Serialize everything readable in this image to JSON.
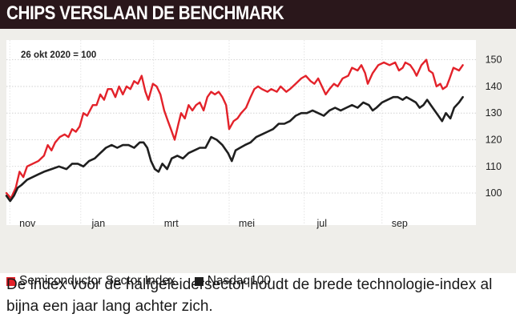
{
  "header": {
    "title": "CHIPS VERSLAAN DE BENCHMARK"
  },
  "colors": {
    "header_bg": "#2a171b",
    "panel_bg": "#efeeea",
    "semiconductor": "#e3222a",
    "nasdaq": "#1f1f1f"
  },
  "chart_data": {
    "type": "line",
    "annotation": "26 okt 2020 = 100",
    "ylim": [
      94,
      155
    ],
    "y_ticks": [
      100,
      110,
      120,
      130,
      140,
      150
    ],
    "y_axis_side": "right",
    "grid": "horizontal",
    "x_ticks": [
      {
        "label": "nov",
        "t": 0.09
      },
      {
        "label": "jan",
        "t": 1.98
      },
      {
        "label": "mrt",
        "t": 3.92
      },
      {
        "label": "mei",
        "t": 5.93
      },
      {
        "label": "jul",
        "t": 7.93
      },
      {
        "label": "sep",
        "t": 10.0
      }
    ],
    "legend_position": "bottom",
    "series": [
      {
        "name": "Semiconductor Sector Index",
        "color": "#e3222a",
        "points": [
          [
            0.0,
            100
          ],
          [
            0.12,
            98
          ],
          [
            0.25,
            102
          ],
          [
            0.35,
            108
          ],
          [
            0.45,
            106
          ],
          [
            0.55,
            110
          ],
          [
            0.7,
            111
          ],
          [
            0.85,
            112
          ],
          [
            1.0,
            114
          ],
          [
            1.1,
            118
          ],
          [
            1.2,
            116
          ],
          [
            1.3,
            119
          ],
          [
            1.42,
            121
          ],
          [
            1.55,
            122
          ],
          [
            1.65,
            121
          ],
          [
            1.75,
            124
          ],
          [
            1.85,
            123
          ],
          [
            1.95,
            125
          ],
          [
            2.05,
            130
          ],
          [
            2.15,
            129
          ],
          [
            2.3,
            133
          ],
          [
            2.4,
            133
          ],
          [
            2.5,
            137
          ],
          [
            2.6,
            135
          ],
          [
            2.7,
            139
          ],
          [
            2.8,
            139
          ],
          [
            2.9,
            136
          ],
          [
            3.0,
            140
          ],
          [
            3.1,
            137
          ],
          [
            3.2,
            140
          ],
          [
            3.3,
            139
          ],
          [
            3.4,
            142
          ],
          [
            3.5,
            141
          ],
          [
            3.6,
            144
          ],
          [
            3.7,
            138
          ],
          [
            3.78,
            135
          ],
          [
            3.9,
            141
          ],
          [
            4.0,
            140
          ],
          [
            4.1,
            137
          ],
          [
            4.2,
            131
          ],
          [
            4.3,
            127
          ],
          [
            4.38,
            124
          ],
          [
            4.48,
            120
          ],
          [
            4.58,
            126
          ],
          [
            4.65,
            130
          ],
          [
            4.75,
            128
          ],
          [
            4.85,
            133
          ],
          [
            4.95,
            131
          ],
          [
            5.05,
            133
          ],
          [
            5.15,
            134
          ],
          [
            5.25,
            131
          ],
          [
            5.35,
            136
          ],
          [
            5.45,
            138
          ],
          [
            5.55,
            137
          ],
          [
            5.65,
            138
          ],
          [
            5.75,
            136
          ],
          [
            5.85,
            133
          ],
          [
            5.93,
            124
          ],
          [
            6.05,
            127
          ],
          [
            6.15,
            128
          ],
          [
            6.25,
            130
          ],
          [
            6.38,
            132
          ],
          [
            6.5,
            136
          ],
          [
            6.6,
            139
          ],
          [
            6.7,
            140
          ],
          [
            6.8,
            139
          ],
          [
            6.95,
            138
          ],
          [
            7.05,
            139
          ],
          [
            7.2,
            138
          ],
          [
            7.3,
            140
          ],
          [
            7.45,
            138
          ],
          [
            7.55,
            139
          ],
          [
            7.7,
            141
          ],
          [
            7.85,
            143
          ],
          [
            7.97,
            144
          ],
          [
            8.1,
            142
          ],
          [
            8.2,
            141
          ],
          [
            8.3,
            143
          ],
          [
            8.4,
            140
          ],
          [
            8.5,
            137
          ],
          [
            8.6,
            139
          ],
          [
            8.72,
            141
          ],
          [
            8.82,
            140
          ],
          [
            8.95,
            143
          ],
          [
            9.1,
            144
          ],
          [
            9.2,
            147
          ],
          [
            9.35,
            146
          ],
          [
            9.45,
            148
          ],
          [
            9.55,
            145
          ],
          [
            9.62,
            141
          ],
          [
            9.75,
            145
          ],
          [
            9.9,
            148
          ],
          [
            10.05,
            149
          ],
          [
            10.2,
            148
          ],
          [
            10.35,
            149
          ],
          [
            10.45,
            146
          ],
          [
            10.55,
            147
          ],
          [
            10.62,
            149
          ],
          [
            10.75,
            148
          ],
          [
            10.85,
            146
          ],
          [
            10.92,
            144
          ],
          [
            11.05,
            148
          ],
          [
            11.18,
            150
          ],
          [
            11.25,
            146
          ],
          [
            11.35,
            145
          ],
          [
            11.45,
            140
          ],
          [
            11.55,
            141
          ],
          [
            11.62,
            139
          ],
          [
            11.72,
            140
          ],
          [
            11.8,
            143
          ],
          [
            11.9,
            147
          ],
          [
            12.05,
            146
          ],
          [
            12.15,
            148
          ]
        ]
      },
      {
        "name": "Nasdaq100",
        "color": "#1f1f1f",
        "points": [
          [
            0.0,
            99
          ],
          [
            0.1,
            97
          ],
          [
            0.2,
            99
          ],
          [
            0.3,
            102
          ],
          [
            0.4,
            103
          ],
          [
            0.55,
            105
          ],
          [
            0.7,
            106
          ],
          [
            0.85,
            107
          ],
          [
            1.0,
            108
          ],
          [
            1.2,
            109
          ],
          [
            1.4,
            110
          ],
          [
            1.6,
            109
          ],
          [
            1.75,
            111
          ],
          [
            1.9,
            111
          ],
          [
            2.05,
            110
          ],
          [
            2.2,
            112
          ],
          [
            2.35,
            113
          ],
          [
            2.5,
            115
          ],
          [
            2.65,
            117
          ],
          [
            2.8,
            118
          ],
          [
            2.95,
            117
          ],
          [
            3.1,
            118
          ],
          [
            3.25,
            118
          ],
          [
            3.4,
            117
          ],
          [
            3.55,
            119
          ],
          [
            3.65,
            119
          ],
          [
            3.75,
            117
          ],
          [
            3.85,
            112
          ],
          [
            3.95,
            109
          ],
          [
            4.05,
            108
          ],
          [
            4.15,
            111
          ],
          [
            4.28,
            109
          ],
          [
            4.4,
            113
          ],
          [
            4.55,
            114
          ],
          [
            4.7,
            113
          ],
          [
            4.85,
            115
          ],
          [
            5.0,
            116
          ],
          [
            5.15,
            117
          ],
          [
            5.3,
            117
          ],
          [
            5.45,
            121
          ],
          [
            5.6,
            120
          ],
          [
            5.75,
            118
          ],
          [
            5.9,
            115
          ],
          [
            6.0,
            112
          ],
          [
            6.1,
            116
          ],
          [
            6.22,
            117
          ],
          [
            6.35,
            118
          ],
          [
            6.5,
            119
          ],
          [
            6.65,
            121
          ],
          [
            6.8,
            122
          ],
          [
            6.95,
            123
          ],
          [
            7.1,
            124
          ],
          [
            7.25,
            126
          ],
          [
            7.4,
            126
          ],
          [
            7.55,
            127
          ],
          [
            7.7,
            129
          ],
          [
            7.85,
            130
          ],
          [
            8.0,
            130
          ],
          [
            8.15,
            131
          ],
          [
            8.3,
            130
          ],
          [
            8.45,
            129
          ],
          [
            8.6,
            131
          ],
          [
            8.75,
            132
          ],
          [
            8.9,
            131
          ],
          [
            9.05,
            132
          ],
          [
            9.2,
            133
          ],
          [
            9.35,
            132
          ],
          [
            9.5,
            134
          ],
          [
            9.65,
            133
          ],
          [
            9.75,
            131
          ],
          [
            9.85,
            132
          ],
          [
            10.0,
            134
          ],
          [
            10.15,
            135
          ],
          [
            10.3,
            136
          ],
          [
            10.42,
            136
          ],
          [
            10.55,
            135
          ],
          [
            10.65,
            136
          ],
          [
            10.78,
            135
          ],
          [
            10.9,
            134
          ],
          [
            11.0,
            132
          ],
          [
            11.1,
            133
          ],
          [
            11.2,
            135
          ],
          [
            11.3,
            133
          ],
          [
            11.4,
            131
          ],
          [
            11.5,
            129
          ],
          [
            11.6,
            127
          ],
          [
            11.7,
            130
          ],
          [
            11.82,
            128
          ],
          [
            11.92,
            132
          ],
          [
            12.05,
            134
          ],
          [
            12.15,
            136
          ]
        ]
      }
    ]
  },
  "legend": {
    "items": [
      {
        "label": "Semiconductor Sector Index"
      },
      {
        "label": "Nasdaq100"
      }
    ]
  },
  "caption": {
    "text": "De index voor de halfgeleidersector houdt de brede technologie-index al bijna een jaar lang achter zich."
  }
}
